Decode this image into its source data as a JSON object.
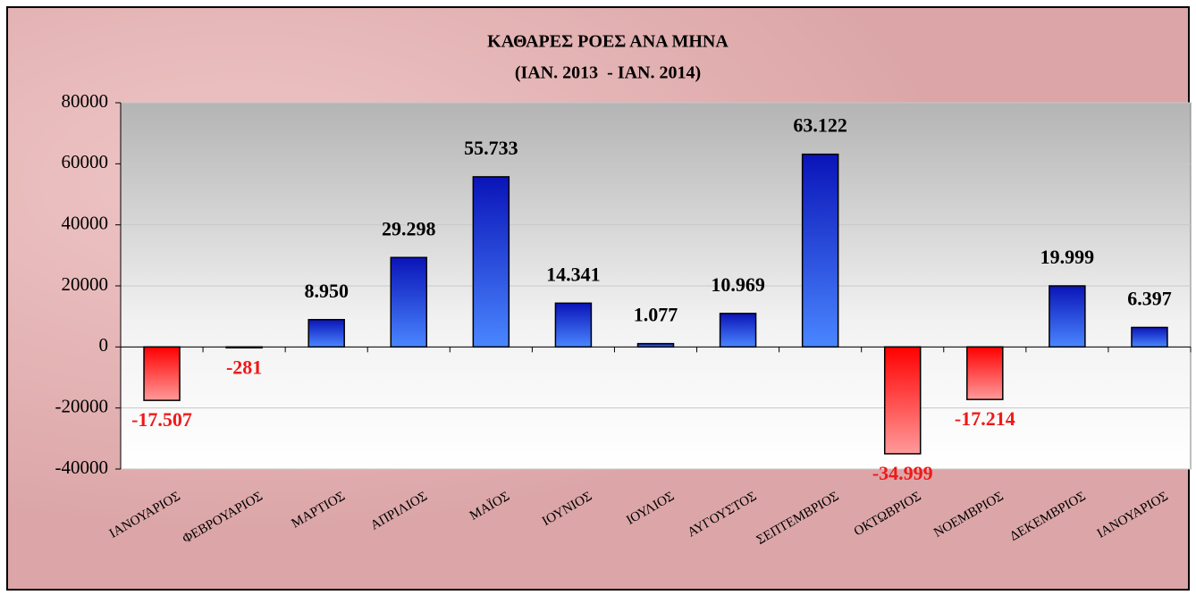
{
  "chart_data": {
    "type": "bar",
    "title": "ΚΑΘΑΡΕΣ ΡΟΕΣ ΑΝΑ ΜΗΝΑ",
    "subtitle": "(ΙΑΝ. 2013  - ΙΑΝ. 2014)",
    "categories": [
      "ΙΑΝΟΥΑΡΙΟΣ",
      "ΦΕΒΡΟΥΑΡΙΟΣ",
      "ΜΑΡΤΙΟΣ",
      "ΑΠΡΙΛΙΟΣ",
      "ΜΑΪΟΣ",
      "ΙΟΥΝΙΟΣ",
      "ΙΟΥΛΙΟΣ",
      "ΑΥΓΟΥΣΤΟΣ",
      "ΣΕΠΤΕΜΒΡΙΟΣ",
      "ΟΚΤΩΒΡΙΟΣ",
      "ΝΟΕΜΒΡΙΟΣ",
      "ΔΕΚΕΜΒΡΙΟΣ",
      "ΙΑΝΟΥΑΡΙΟΣ"
    ],
    "values": [
      -17507,
      -281,
      8950,
      29298,
      55733,
      14341,
      1077,
      10969,
      63122,
      -34999,
      -17214,
      19999,
      6397
    ],
    "value_labels": [
      "-17.507",
      "-281",
      "8.950",
      "29.298",
      "55.733",
      "14.341",
      "1.077",
      "10.969",
      "63.122",
      "-34.999",
      "-17.214",
      "19.999",
      "6.397"
    ],
    "color": "#1a2fe0",
    "negative_color": "#f01818",
    "ylim": [
      -40000,
      80000
    ],
    "yticks": [
      -40000,
      -20000,
      0,
      20000,
      40000,
      60000,
      80000
    ],
    "grid": true
  }
}
